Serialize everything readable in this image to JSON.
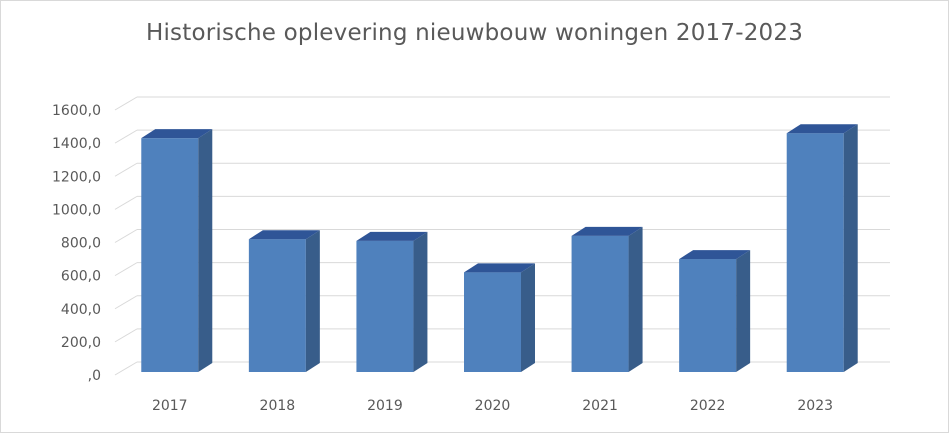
{
  "chart_data": {
    "type": "bar",
    "title": "Historische oplevering nieuwbouw woningen 2017-2023",
    "categories": [
      "2017",
      "2018",
      "2019",
      "2020",
      "2021",
      "2022",
      "2023"
    ],
    "values": [
      1430,
      820,
      810,
      620,
      840,
      700,
      1460
    ],
    "ylim": [
      0,
      1600
    ],
    "yticks": [
      0,
      200,
      400,
      600,
      800,
      1000,
      1200,
      1400,
      1600
    ],
    "ytick_labels": [
      ",0",
      "200,0",
      "400,0",
      "600,0",
      "800,0",
      "1000,0",
      "1200,0",
      "1400,0",
      "1600,0"
    ],
    "xlabel": "",
    "ylabel": "",
    "grid": true,
    "legend": "none",
    "three_d": true,
    "colors": {
      "bar_front": "#4f81bd",
      "bar_side": "#385d8a",
      "bar_top": "#2f5597",
      "grid": "#d9d9d9",
      "text": "#595959"
    }
  }
}
